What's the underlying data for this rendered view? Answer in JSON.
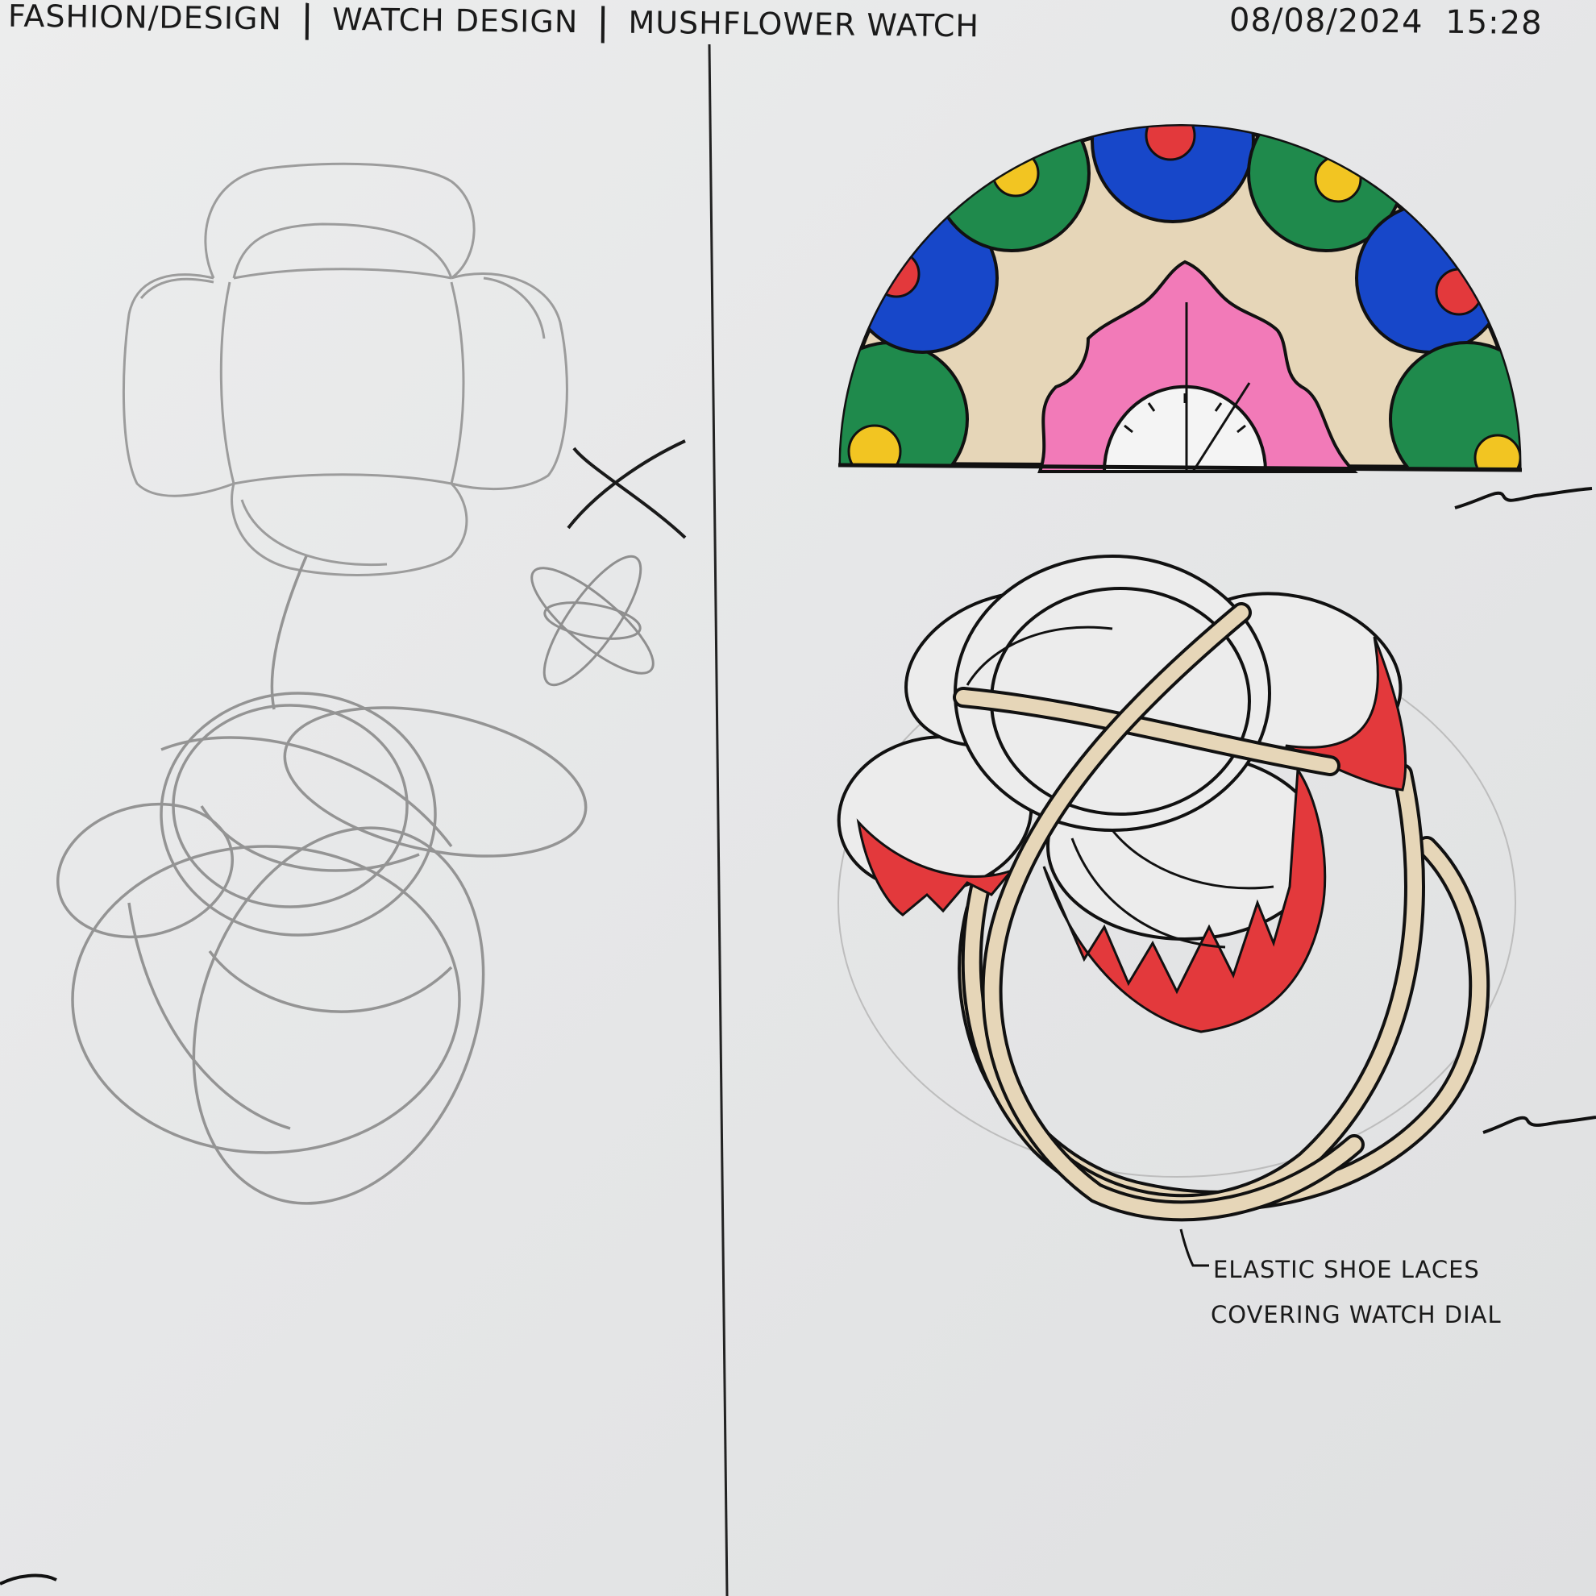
{
  "header": {
    "breadcrumb_1": "FASHION/DESIGN",
    "breadcrumb_2": "WATCH DESIGN",
    "breadcrumb_3": "MUSHFLOWER WATCH",
    "date": "08/08/2024",
    "time": "15:28"
  },
  "annotation": {
    "line_1": "ELASTIC SHOE LACES",
    "line_2": "COVERING WATCH DIAL"
  },
  "colors": {
    "paper": "#e8e9ea",
    "ink": "#111111",
    "pencil": "#9a9a9a",
    "green": "#1f8a4c",
    "blue": "#1747c9",
    "red": "#e3393c",
    "yellow": "#f2c522",
    "pink": "#f27ab8",
    "beige": "#e6d6b8"
  }
}
